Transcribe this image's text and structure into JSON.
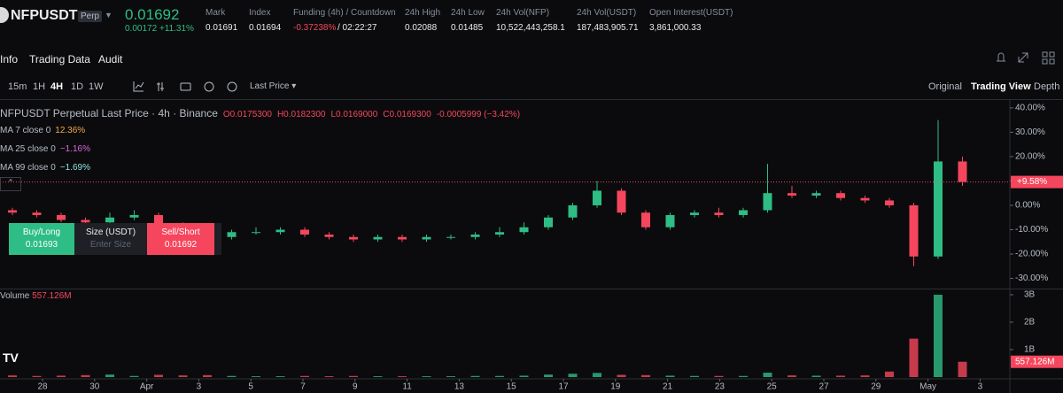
{
  "header": {
    "symbol": "NFPUSDT",
    "badge": "Perp",
    "price": "0.01692",
    "change": "0.00172",
    "change_pct": "+11.31%",
    "stats": [
      {
        "label": "Mark",
        "value": "0.01691"
      },
      {
        "label": "Index",
        "value": "0.01694"
      },
      {
        "label": "Funding (4h) / Countdown",
        "value": "-0.37238%",
        "extra": "/ 02:22:27"
      },
      {
        "label": "24h High",
        "value": "0.02088"
      },
      {
        "label": "24h Low",
        "value": "0.01485"
      },
      {
        "label": "24h Vol(NFP)",
        "value": "10,522,443,258.1"
      },
      {
        "label": "24h Vol(USDT)",
        "value": "187,483,905.71"
      },
      {
        "label": "Open Interest(USDT)",
        "value": "3,861,000.33"
      }
    ]
  },
  "tabs": [
    "Info",
    "Trading Data",
    "Audit"
  ],
  "toolbar": {
    "intervals": [
      "15m",
      "1H",
      "4H",
      "1D",
      "1W"
    ],
    "price_type": "Last Price",
    "views": [
      "Original",
      "Trading View",
      "Depth"
    ]
  },
  "legend": {
    "title": "NFPUSDT Perpetual Last Price · 4h · Binance",
    "ohlc": [
      "O0.0175300",
      "H0.0182300",
      "L0.0169000",
      "C0.0169300",
      "-0.0005999 (−3.42%)"
    ],
    "ma": [
      {
        "label": "MA 7 close 0",
        "value": "12.36%",
        "color": "#f0a84a"
      },
      {
        "label": "MA 25 close 0",
        "value": "−1.16%",
        "color": "#d86ad8"
      },
      {
        "label": "MA 99 close 0",
        "value": "−1.69%",
        "color": "#8fe0e0"
      }
    ],
    "volume_title": "Volume",
    "volume_value": "557.126M"
  },
  "order": {
    "buy": "Buy/Long",
    "buy_price": "0.01693",
    "size": "Size (USDT)",
    "size_placeholder": "Enter Size",
    "sell": "Sell/Short",
    "sell_price": "0.01692"
  },
  "chart_data": {
    "type": "candlestick",
    "up_color": "#2ebd85",
    "down_color": "#f6465d",
    "open": [
      -2,
      -3,
      -4,
      -6,
      -7,
      -5,
      -4,
      -8,
      -11,
      -13,
      -11,
      -11,
      -10,
      -12,
      -13,
      -14,
      -13,
      -14,
      -13,
      -13,
      -12,
      -11,
      -9,
      -5,
      0,
      6,
      -3,
      -9,
      -4,
      -3,
      -4,
      -2,
      5,
      4,
      5,
      3,
      2,
      0,
      -21,
      18
    ],
    "high": [
      -1,
      -2,
      -3,
      -5,
      -3,
      -2,
      -3,
      -7,
      -10,
      -10,
      -9,
      -9,
      -9,
      -11,
      -12,
      -12,
      -12,
      -12,
      -12,
      -11,
      -9,
      -7,
      -4,
      1,
      10,
      7,
      -2,
      -3,
      -2,
      -1,
      -1,
      17,
      8,
      6,
      6,
      4,
      3,
      1,
      35,
      20
    ],
    "low": [
      -4,
      -5,
      -7,
      -8,
      -8,
      -6,
      -10,
      -12,
      -15,
      -14,
      -12,
      -12,
      -13,
      -14,
      -15,
      -15,
      -15,
      -15,
      -14,
      -14,
      -13,
      -12,
      -10,
      -6,
      -1,
      -4,
      -10,
      -10,
      -5,
      -5,
      -5,
      -3,
      3,
      3,
      2,
      1,
      -1,
      -25,
      -22,
      8
    ],
    "close": [
      -3,
      -4,
      -6,
      -7,
      -5,
      -4,
      -8,
      -11,
      -13,
      -11,
      -11,
      -10,
      -12,
      -13,
      -14,
      -13,
      -14,
      -13,
      -13,
      -12,
      -11,
      -9,
      -5,
      0,
      6,
      -3,
      -9,
      -4,
      -3,
      -4,
      -2,
      5,
      4,
      5,
      3,
      2,
      0,
      -21,
      18,
      9.58
    ],
    "volume": [
      60000000,
      40000000,
      50000000,
      70000000,
      90000000,
      40000000,
      80000000,
      60000000,
      70000000,
      40000000,
      30000000,
      30000000,
      40000000,
      30000000,
      40000000,
      30000000,
      30000000,
      30000000,
      30000000,
      40000000,
      40000000,
      50000000,
      90000000,
      120000000,
      150000000,
      80000000,
      70000000,
      50000000,
      40000000,
      40000000,
      40000000,
      160000000,
      60000000,
      50000000,
      50000000,
      60000000,
      200000000,
      1400000000,
      3000000000,
      557126000
    ],
    "last_value": 9.58,
    "last_label": "+9.58%",
    "ylim": [
      -33.8,
      42.5
    ],
    "yticks": [
      {
        "value": 40,
        "label": "40.00%"
      },
      {
        "value": 30,
        "label": "30.00%"
      },
      {
        "value": 20,
        "label": "20.00%"
      },
      {
        "value": 10,
        "label": "10.00%"
      },
      {
        "value": 0,
        "label": "0.00%"
      },
      {
        "value": -10,
        "label": "-10.00%"
      },
      {
        "value": -20,
        "label": "-20.00%"
      },
      {
        "value": -30,
        "label": "-30.00%"
      }
    ],
    "vlim": [
      0,
      3160000000
    ],
    "vticks": [
      {
        "value": 1000000000,
        "label": "1B"
      },
      {
        "value": 2000000000,
        "label": "2B"
      },
      {
        "value": 3000000000,
        "label": "3B"
      }
    ],
    "x_labels": [
      "28",
      "30",
      "Apr",
      "3",
      "5",
      "7",
      "9",
      "11",
      "13",
      "15",
      "17",
      "19",
      "21",
      "23",
      "25",
      "27",
      "29",
      "May",
      "3"
    ]
  }
}
